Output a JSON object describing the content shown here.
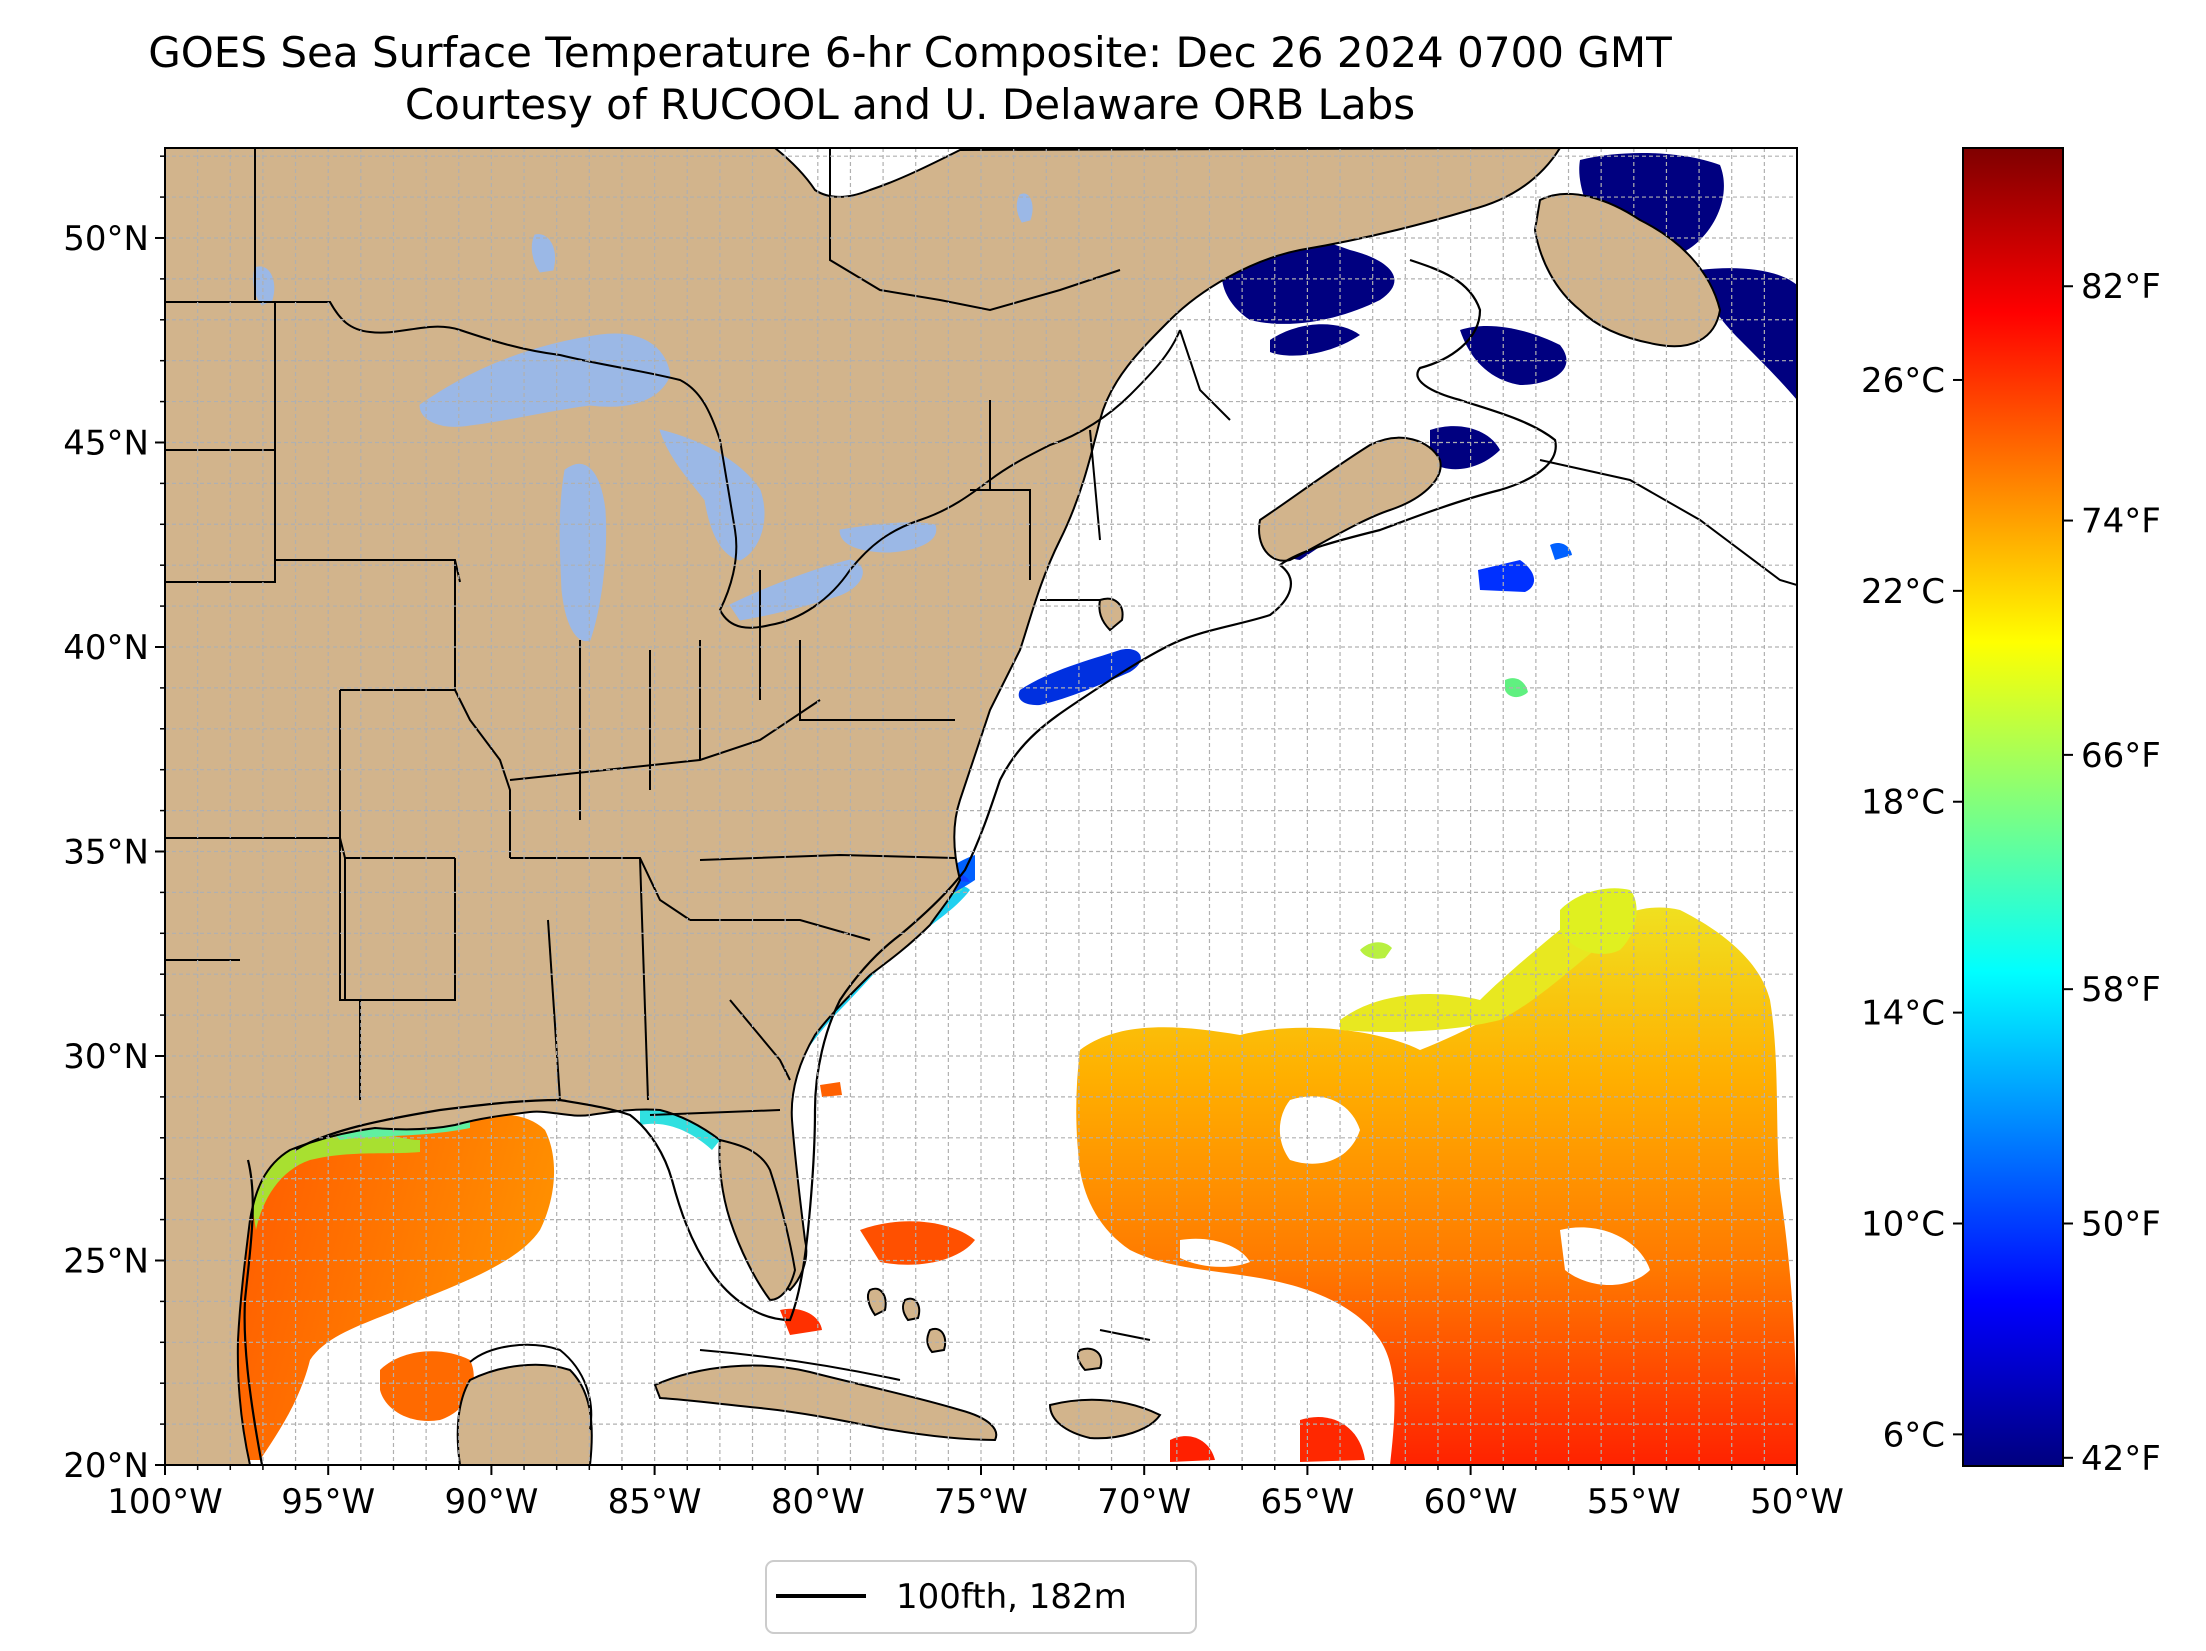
{
  "title": {
    "line1": "GOES Sea Surface Temperature 6-hr Composite: Dec 26 2024 0700 GMT",
    "line2": "Courtesy of RUCOOL and U. Delaware ORB Labs"
  },
  "map": {
    "lon_range": [
      -100,
      -50
    ],
    "lat_range": [
      20,
      52.2
    ],
    "lon_ticks": [
      "100°W",
      "95°W",
      "90°W",
      "85°W",
      "80°W",
      "75°W",
      "70°W",
      "65°W",
      "60°W",
      "55°W",
      "50°W"
    ],
    "lat_ticks": [
      "20°N",
      "25°N",
      "30°N",
      "35°N",
      "40°N",
      "45°N",
      "50°N"
    ],
    "land_color": "#d2b48c",
    "lake_color": "#9bb8e6",
    "grid": "on, dashed light gray, 1° spacing"
  },
  "legend": {
    "label": "100fth, 182m",
    "placement": "bottom-center"
  },
  "colorbar": {
    "celsius_ticks": [
      "26°C",
      "22°C",
      "18°C",
      "14°C",
      "10°C",
      "6°C"
    ],
    "fahrenheit_ticks": [
      "82°F",
      "74°F",
      "66°F",
      "58°F",
      "50°F",
      "42°F"
    ],
    "colormap": "jet",
    "colormap_stops": [
      "#00007f",
      "#0000ff",
      "#007fff",
      "#00ffff",
      "#7fff7f",
      "#ffff00",
      "#ff7f00",
      "#ff0000",
      "#7f0000"
    ],
    "range_c": [
      5.4,
      30.4
    ]
  }
}
